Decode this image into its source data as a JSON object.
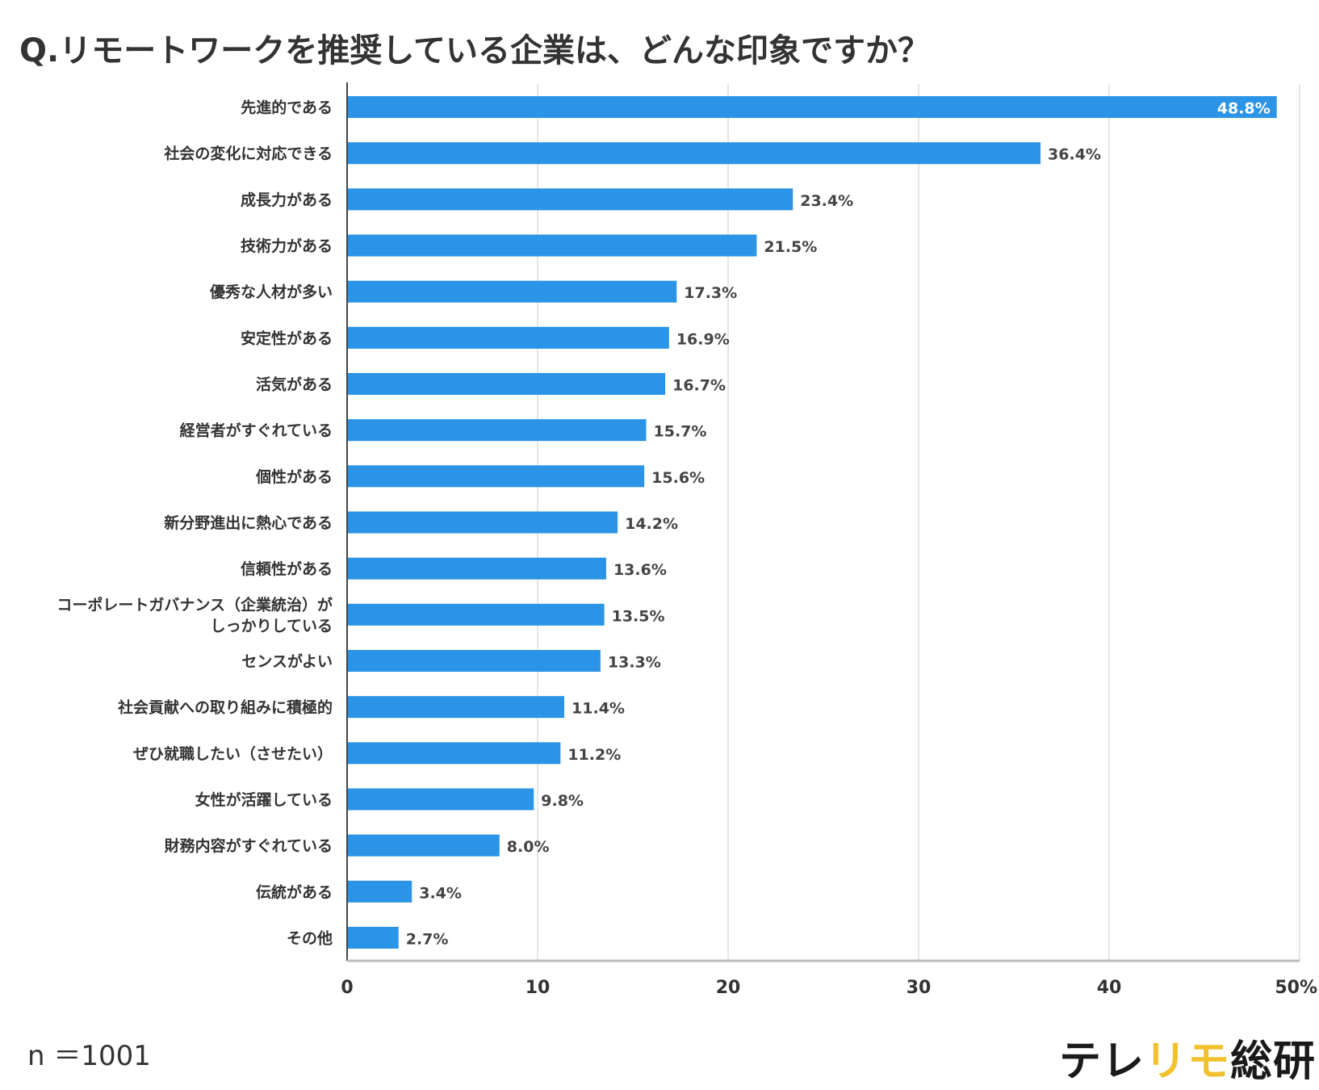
{
  "title": "Q.リモートワークを推奨している企業は、どんな印象ですか？",
  "sample_size": "n ＝1001",
  "logo": {
    "parts": [
      {
        "text": "テレ",
        "color": "#1a1a1a"
      },
      {
        "text": "リモ",
        "color": "#f2c12e"
      },
      {
        "text": "総研",
        "color": "#1a1a1a"
      }
    ]
  },
  "colors": {
    "bar": "#2b94e6",
    "grid": "#e6e6e6",
    "axis": "#444444"
  },
  "chart_data": {
    "type": "bar",
    "orientation": "horizontal",
    "title": "Q.リモートワークを推奨している企業は、どんな印象ですか？",
    "xlabel": "",
    "ylabel": "",
    "xlim": [
      0,
      50
    ],
    "grid": true,
    "x_ticks": [
      {
        "value": 0,
        "label": "0"
      },
      {
        "value": 10,
        "label": "10"
      },
      {
        "value": 20,
        "label": "20"
      },
      {
        "value": 30,
        "label": "30"
      },
      {
        "value": 40,
        "label": "40"
      },
      {
        "value": 50,
        "label": "50%"
      }
    ],
    "categories": [
      [
        "先進的である"
      ],
      [
        "社会の変化に対応できる"
      ],
      [
        "成長力がある"
      ],
      [
        "技術力がある"
      ],
      [
        "優秀な人材が多い"
      ],
      [
        "安定性がある"
      ],
      [
        "活気がある"
      ],
      [
        "経営者がすぐれている"
      ],
      [
        "個性がある"
      ],
      [
        "新分野進出に熱心である"
      ],
      [
        "信頼性がある"
      ],
      [
        "コーポレートガバナンス（企業統治）が",
        "しっかりしている"
      ],
      [
        "センスがよい"
      ],
      [
        "社会貢献への取り組みに積極的"
      ],
      [
        "ぜひ就職したい（させたい）"
      ],
      [
        "女性が活躍している"
      ],
      [
        "財務内容がすぐれている"
      ],
      [
        "伝統がある"
      ],
      [
        "その他"
      ]
    ],
    "values": [
      48.8,
      36.4,
      23.4,
      21.5,
      17.3,
      16.9,
      16.7,
      15.7,
      15.6,
      14.2,
      13.6,
      13.5,
      13.3,
      11.4,
      11.2,
      9.8,
      8.0,
      3.4,
      2.7
    ],
    "value_labels": [
      "48.8%",
      "36.4%",
      "23.4%",
      "21.5%",
      "17.3%",
      "16.9%",
      "16.7%",
      "15.7%",
      "15.6%",
      "14.2%",
      "13.6%",
      "13.5%",
      "13.3%",
      "11.4%",
      "11.2%",
      "9.8%",
      "8.0%",
      "3.4%",
      "2.7%"
    ]
  }
}
